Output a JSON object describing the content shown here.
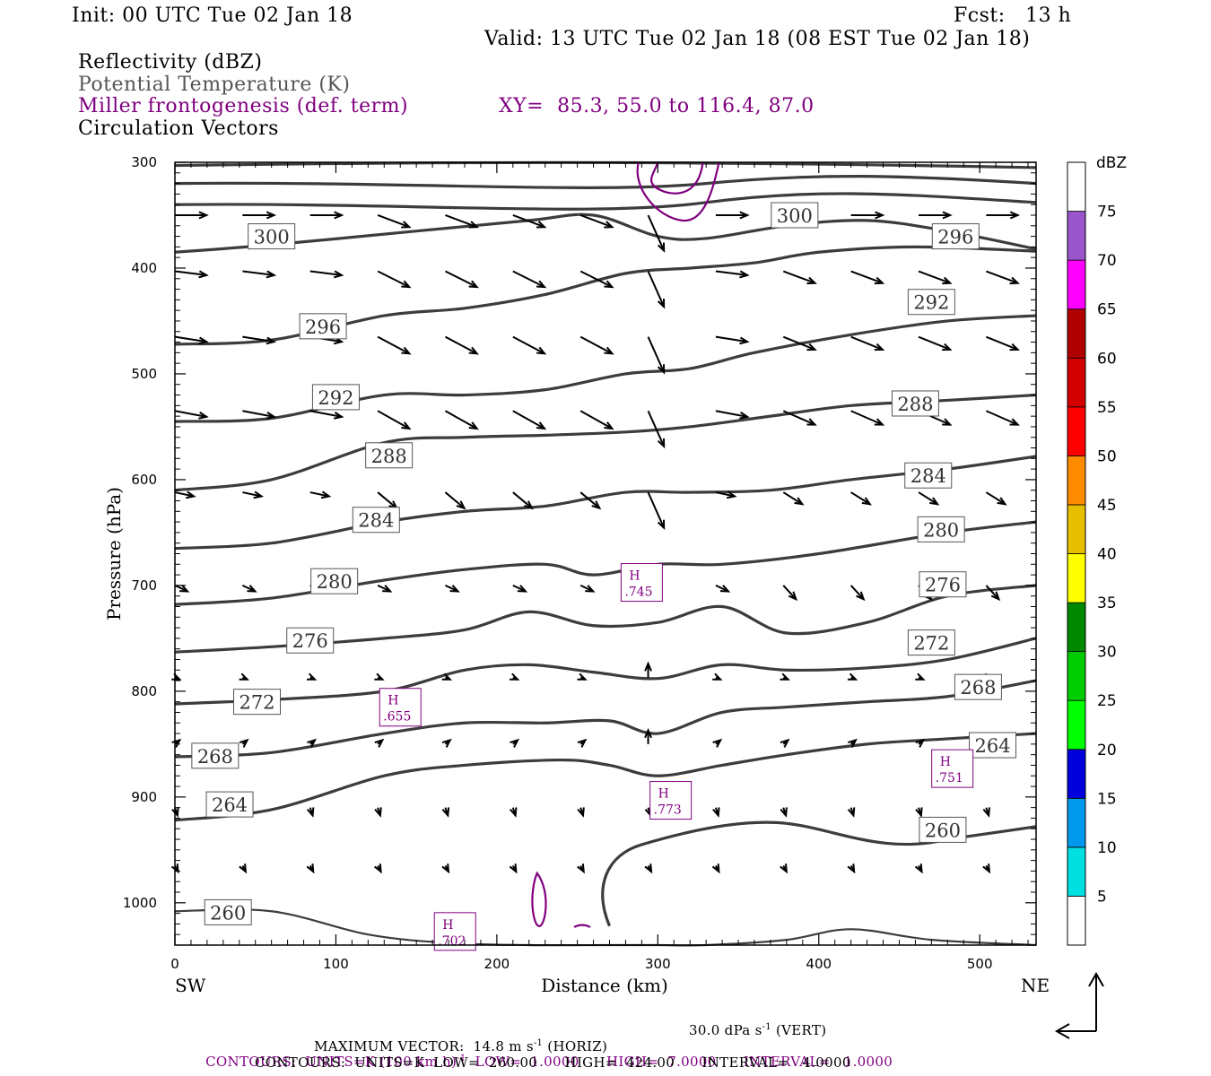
{
  "header": {
    "init": "Init: 00 UTC Tue 02 Jan 18",
    "fcst": "Fcst:   13 h",
    "valid": "Valid: 13 UTC Tue 02 Jan 18 (08 EST Tue 02 Jan 18)",
    "field1": "Reflectivity (dBZ)",
    "field2": "Potential Temperature (K)",
    "field3": "Miller frontogenesis (def. term)",
    "xy": "XY=  85.3, 55.0 to 116.4, 87.0",
    "field4": "Circulation Vectors"
  },
  "chart_data": {
    "type": "line",
    "ylabel": "Pressure (hPa)",
    "xlabel": "Distance (km)",
    "x_left_label": "SW",
    "x_right_label": "NE",
    "xlim": [
      0,
      535
    ],
    "ylim": [
      1040,
      300
    ],
    "y_ticks": [
      300,
      400,
      500,
      600,
      700,
      800,
      900,
      1000
    ],
    "x_ticks": [
      0,
      100,
      200,
      300,
      400,
      500
    ],
    "theta_contours": [
      {
        "level": 300,
        "points": [
          [
            0,
            385
          ],
          [
            60,
            378
          ],
          [
            150,
            365
          ],
          [
            220,
            355
          ],
          [
            260,
            350
          ],
          [
            300,
            370
          ],
          [
            330,
            372
          ],
          [
            380,
            360
          ],
          [
            430,
            355
          ],
          [
            480,
            365
          ],
          [
            535,
            382
          ]
        ]
      },
      {
        "level": 296,
        "points": [
          [
            0,
            472
          ],
          [
            60,
            468
          ],
          [
            130,
            445
          ],
          [
            180,
            438
          ],
          [
            230,
            425
          ],
          [
            280,
            405
          ],
          [
            320,
            400
          ],
          [
            360,
            395
          ],
          [
            400,
            385
          ],
          [
            460,
            380
          ],
          [
            535,
            384
          ]
        ]
      },
      {
        "level": 292,
        "points": [
          [
            0,
            545
          ],
          [
            60,
            542
          ],
          [
            130,
            520
          ],
          [
            180,
            520
          ],
          [
            230,
            515
          ],
          [
            280,
            500
          ],
          [
            320,
            495
          ],
          [
            360,
            480
          ],
          [
            420,
            463
          ],
          [
            480,
            450
          ],
          [
            535,
            445
          ]
        ]
      },
      {
        "level": 288,
        "points": [
          [
            0,
            610
          ],
          [
            60,
            600
          ],
          [
            130,
            565
          ],
          [
            180,
            560
          ],
          [
            230,
            558
          ],
          [
            280,
            555
          ],
          [
            320,
            550
          ],
          [
            370,
            540
          ],
          [
            420,
            530
          ],
          [
            480,
            525
          ],
          [
            535,
            520
          ]
        ]
      },
      {
        "level": 284,
        "points": [
          [
            0,
            665
          ],
          [
            60,
            660
          ],
          [
            130,
            640
          ],
          [
            180,
            630
          ],
          [
            230,
            625
          ],
          [
            280,
            612
          ],
          [
            320,
            612
          ],
          [
            370,
            610
          ],
          [
            420,
            600
          ],
          [
            480,
            590
          ],
          [
            535,
            578
          ]
        ]
      },
      {
        "level": 280,
        "points": [
          [
            0,
            718
          ],
          [
            60,
            712
          ],
          [
            130,
            695
          ],
          [
            180,
            685
          ],
          [
            230,
            680
          ],
          [
            260,
            690
          ],
          [
            300,
            680
          ],
          [
            340,
            680
          ],
          [
            400,
            670
          ],
          [
            480,
            650
          ],
          [
            535,
            640
          ]
        ]
      },
      {
        "level": 276,
        "points": [
          [
            0,
            763
          ],
          [
            60,
            758
          ],
          [
            130,
            750
          ],
          [
            180,
            742
          ],
          [
            220,
            725
          ],
          [
            260,
            738
          ],
          [
            300,
            735
          ],
          [
            340,
            720
          ],
          [
            380,
            745
          ],
          [
            430,
            735
          ],
          [
            480,
            710
          ],
          [
            535,
            700
          ]
        ]
      },
      {
        "level": 272,
        "points": [
          [
            0,
            812
          ],
          [
            60,
            808
          ],
          [
            130,
            800
          ],
          [
            180,
            780
          ],
          [
            220,
            775
          ],
          [
            260,
            782
          ],
          [
            300,
            788
          ],
          [
            340,
            775
          ],
          [
            380,
            780
          ],
          [
            430,
            778
          ],
          [
            480,
            770
          ],
          [
            535,
            750
          ]
        ]
      },
      {
        "level": 268,
        "points": [
          [
            0,
            862
          ],
          [
            60,
            858
          ],
          [
            130,
            840
          ],
          [
            180,
            830
          ],
          [
            230,
            830
          ],
          [
            270,
            828
          ],
          [
            300,
            840
          ],
          [
            340,
            820
          ],
          [
            380,
            815
          ],
          [
            430,
            810
          ],
          [
            480,
            805
          ],
          [
            535,
            790
          ]
        ]
      },
      {
        "level": 264,
        "points": [
          [
            0,
            922
          ],
          [
            60,
            912
          ],
          [
            130,
            880
          ],
          [
            180,
            870
          ],
          [
            240,
            865
          ],
          [
            270,
            870
          ],
          [
            300,
            880
          ],
          [
            340,
            870
          ],
          [
            380,
            860
          ],
          [
            430,
            850
          ],
          [
            480,
            845
          ],
          [
            535,
            840
          ]
        ]
      },
      {
        "level": 260,
        "points": [
          [
            0,
            1008
          ],
          [
            60,
            1008
          ],
          [
            120,
            1030
          ],
          [
            170,
            1038
          ],
          [
            220,
            1040
          ],
          [
            270,
            1040
          ],
          [
            300,
            1040
          ],
          [
            330,
            1040
          ],
          [
            380,
            1035
          ],
          [
            420,
            1025
          ],
          [
            470,
            1035
          ],
          [
            535,
            1040
          ]
        ]
      }
    ],
    "contour_labels": [
      {
        "text": "300",
        "x": 60,
        "p": 370
      },
      {
        "text": "300",
        "x": 385,
        "p": 350
      },
      {
        "text": "296",
        "x": 92,
        "p": 455
      },
      {
        "text": "296",
        "x": 485,
        "p": 370
      },
      {
        "text": "292",
        "x": 100,
        "p": 522
      },
      {
        "text": "292",
        "x": 470,
        "p": 432
      },
      {
        "text": "288",
        "x": 133,
        "p": 577
      },
      {
        "text": "288",
        "x": 460,
        "p": 528
      },
      {
        "text": "284",
        "x": 125,
        "p": 638
      },
      {
        "text": "284",
        "x": 468,
        "p": 596
      },
      {
        "text": "280",
        "x": 99,
        "p": 696
      },
      {
        "text": "280",
        "x": 476,
        "p": 647
      },
      {
        "text": "276",
        "x": 84,
        "p": 752
      },
      {
        "text": "276",
        "x": 477,
        "p": 699
      },
      {
        "text": "272",
        "x": 51,
        "p": 810
      },
      {
        "text": "272",
        "x": 470,
        "p": 754
      },
      {
        "text": "268",
        "x": 25,
        "p": 861
      },
      {
        "text": "268",
        "x": 499,
        "p": 796
      },
      {
        "text": "264",
        "x": 34,
        "p": 907
      },
      {
        "text": "264",
        "x": 508,
        "p": 851
      },
      {
        "text": "260",
        "x": 477,
        "p": 931
      },
      {
        "text": "260",
        "x": 33,
        "p": 1009
      }
    ],
    "frontogenesis_highs": [
      {
        "label": "H",
        "value": ".745",
        "x": 290,
        "p": 698
      },
      {
        "label": "H",
        "value": ".655",
        "x": 140,
        "p": 816
      },
      {
        "label": "H",
        "value": ".773",
        "x": 308,
        "p": 904
      },
      {
        "label": "H",
        "value": ".751",
        "x": 483,
        "p": 874
      },
      {
        "label": "H",
        "value": ".702",
        "x": 174,
        "p": 1028
      }
    ],
    "colorbar": {
      "title": "dBZ",
      "levels": [
        5,
        10,
        15,
        20,
        25,
        30,
        35,
        40,
        45,
        50,
        55,
        60,
        65,
        70,
        75
      ],
      "colors": [
        "#ffffff",
        "#00e0e0",
        "#0099ee",
        "#0000dd",
        "#00ff00",
        "#00cc00",
        "#008800",
        "#ffff00",
        "#e6c000",
        "#ff8c00",
        "#ff0000",
        "#d40000",
        "#b00000",
        "#ff00ff",
        "#9955cc",
        "#ffffff"
      ]
    }
  },
  "footer": {
    "line1a": "MAXIMUM VECTOR:  14.8 m s",
    "line1a_sup": "-1",
    "line1b": " (HORIZ)",
    "line1c": "30.0 dPa s",
    "line1c_sup": "-1",
    "line1d": " (VERT)",
    "line2a": "CONTOURS:  UNITS=K (100 km h)",
    "line2a_sup": "-1",
    "line2b": "  LOW=  1.0000      HIGH=  7.0000      INTERVAL=   1.0000",
    "line3": "CONTOURS:  UNITS=K  LOW=  260.00      HIGH=  424.00      INTERVAL=   4.0000"
  }
}
